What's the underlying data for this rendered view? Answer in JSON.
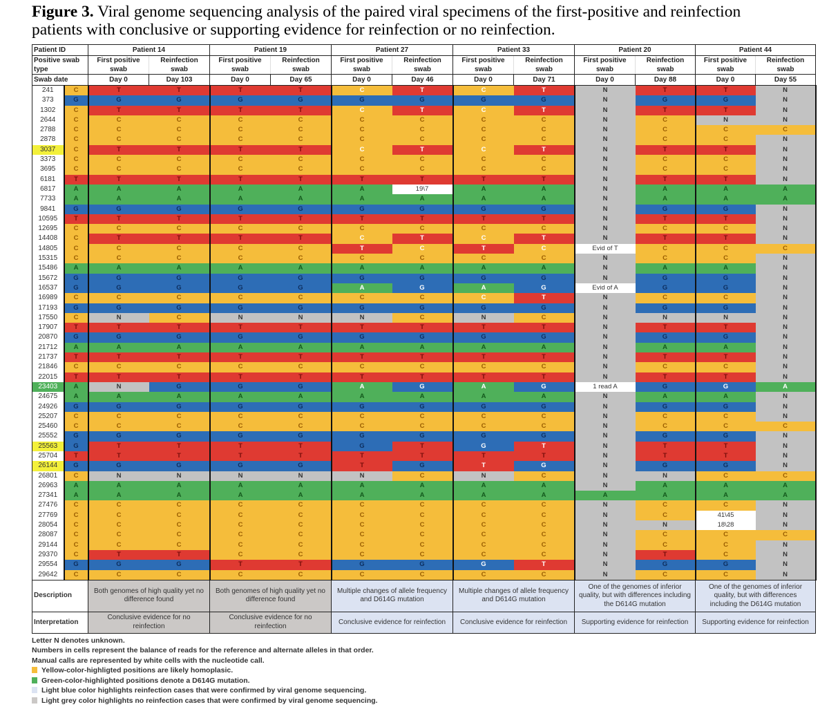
{
  "caption": {
    "label": "Figure 3.",
    "text": " Viral genome sequencing analysis of the paired viral specimens of the first-positive and reinfection",
    "line2": "patients with conclusive or supporting evidence for reinfection or no reinfection."
  },
  "header": {
    "patient_id_label": "Patient ID",
    "swab_type_label": "Positive swab type",
    "swab_date_label": "Swab date",
    "patients": [
      {
        "name": "Patient 14",
        "first": "First positive swab",
        "reinf": "Reinfection swab",
        "day_first": "Day 0",
        "day_reinf": "Day 103"
      },
      {
        "name": "Patient 19",
        "first": "First positive swab",
        "reinf": "Reinfection swab",
        "day_first": "Day 0",
        "day_reinf": "Day 65"
      },
      {
        "name": "Patient 27",
        "first": "First positive swab",
        "reinf": "Reinfection swab",
        "day_first": "Day 0",
        "day_reinf": "Day 46"
      },
      {
        "name": "Patient 33",
        "first": "First positive swab",
        "reinf": "Reinfection swab",
        "day_first": "Day 0",
        "day_reinf": "Day 71"
      },
      {
        "name": "Patient 20",
        "first": "First positive swab",
        "reinf": "Reinfection swab",
        "day_first": "Day 0",
        "day_reinf": "Day 88"
      },
      {
        "name": "Patient 44",
        "first": "First positive swab",
        "reinf": "Reinfection swab",
        "day_first": "Day 0",
        "day_reinf": "Day 55"
      }
    ]
  },
  "colors": {
    "C": "#f5bd3b",
    "T": "#df3a32",
    "G": "#2d6db6",
    "A": "#4fb05a",
    "N": "#c2c2c2",
    "manual": "#ffffff",
    "grey_case": "#cbc8c6",
    "blue_case": "#dce3f2"
  },
  "rows": [
    {
      "pos": "241",
      "cells": [
        "C",
        "T",
        "T",
        "T",
        "T",
        "C",
        "T",
        "C",
        "T",
        "N",
        "T",
        "T",
        "N"
      ],
      "light": [
        5,
        6,
        7,
        8
      ]
    },
    {
      "pos": "373",
      "cells": [
        "G",
        "G",
        "G",
        "G",
        "G",
        "G",
        "G",
        "G",
        "G",
        "N",
        "G",
        "G",
        "N"
      ]
    },
    {
      "pos": "1302",
      "cells": [
        "C",
        "T",
        "T",
        "T",
        "T",
        "C",
        "T",
        "C",
        "T",
        "N",
        "T",
        "T",
        "N"
      ],
      "light": [
        5,
        6,
        7,
        8
      ]
    },
    {
      "pos": "2644",
      "cells": [
        "C",
        "C",
        "C",
        "C",
        "C",
        "C",
        "C",
        "C",
        "C",
        "N",
        "C",
        "N",
        "N"
      ]
    },
    {
      "pos": "2788",
      "cells": [
        "C",
        "C",
        "C",
        "C",
        "C",
        "C",
        "C",
        "C",
        "C",
        "N",
        "C",
        "C",
        "C"
      ]
    },
    {
      "pos": "2878",
      "cells": [
        "C",
        "C",
        "C",
        "C",
        "C",
        "C",
        "C",
        "C",
        "C",
        "N",
        "C",
        "C",
        "N"
      ]
    },
    {
      "pos": "3037",
      "highlight": "yellow",
      "cells": [
        "C",
        "T",
        "T",
        "T",
        "T",
        "C",
        "T",
        "C",
        "T",
        "N",
        "T",
        "T",
        "N"
      ],
      "light": [
        5,
        6,
        7,
        8
      ]
    },
    {
      "pos": "3373",
      "cells": [
        "C",
        "C",
        "C",
        "C",
        "C",
        "C",
        "C",
        "C",
        "C",
        "N",
        "C",
        "C",
        "N"
      ]
    },
    {
      "pos": "3695",
      "cells": [
        "C",
        "C",
        "C",
        "C",
        "C",
        "C",
        "C",
        "C",
        "C",
        "N",
        "C",
        "C",
        "N"
      ]
    },
    {
      "pos": "6181",
      "cells": [
        "T",
        "T",
        "T",
        "T",
        "T",
        "T",
        "T",
        "T",
        "T",
        "N",
        "T",
        "T",
        "N"
      ]
    },
    {
      "pos": "6817",
      "cells": [
        "A",
        "A",
        "A",
        "A",
        "A",
        "A",
        "19\\7",
        "A",
        "A",
        "N",
        "A",
        "A",
        "A"
      ]
    },
    {
      "pos": "7733",
      "cells": [
        "A",
        "A",
        "A",
        "A",
        "A",
        "A",
        "A",
        "A",
        "A",
        "N",
        "A",
        "A",
        "A"
      ]
    },
    {
      "pos": "9841",
      "cells": [
        "G",
        "G",
        "G",
        "G",
        "G",
        "G",
        "G",
        "G",
        "G",
        "N",
        "G",
        "G",
        "N"
      ]
    },
    {
      "pos": "10595",
      "cells": [
        "T",
        "T",
        "T",
        "T",
        "T",
        "T",
        "T",
        "T",
        "T",
        "N",
        "T",
        "T",
        "N"
      ]
    },
    {
      "pos": "12695",
      "cells": [
        "C",
        "C",
        "C",
        "C",
        "C",
        "C",
        "C",
        "C",
        "C",
        "N",
        "C",
        "C",
        "N"
      ]
    },
    {
      "pos": "14408",
      "cells": [
        "C",
        "T",
        "T",
        "T",
        "T",
        "C",
        "T",
        "C",
        "T",
        "N",
        "T",
        "T",
        "N"
      ],
      "light": [
        5,
        6,
        7,
        8
      ]
    },
    {
      "pos": "14805",
      "cells": [
        "C",
        "C",
        "C",
        "C",
        "C",
        "T",
        "C",
        "T",
        "C",
        "Evid of T",
        "C",
        "C",
        "C"
      ],
      "light": [
        5,
        6,
        7,
        8
      ]
    },
    {
      "pos": "15315",
      "cells": [
        "C",
        "C",
        "C",
        "C",
        "C",
        "C",
        "C",
        "C",
        "C",
        "N",
        "C",
        "C",
        "N"
      ]
    },
    {
      "pos": "15486",
      "cells": [
        "A",
        "A",
        "A",
        "A",
        "A",
        "A",
        "A",
        "A",
        "A",
        "N",
        "A",
        "A",
        "N"
      ]
    },
    {
      "pos": "15672",
      "cells": [
        "G",
        "G",
        "G",
        "G",
        "G",
        "G",
        "G",
        "G",
        "G",
        "N",
        "G",
        "G",
        "N"
      ]
    },
    {
      "pos": "16537",
      "cells": [
        "G",
        "G",
        "G",
        "G",
        "G",
        "A",
        "G",
        "A",
        "G",
        "Evid of A",
        "G",
        "G",
        "N"
      ],
      "light": [
        5,
        6,
        7,
        8
      ]
    },
    {
      "pos": "16989",
      "cells": [
        "C",
        "C",
        "C",
        "C",
        "C",
        "C",
        "C",
        "C",
        "T",
        "N",
        "C",
        "C",
        "N"
      ],
      "light": [
        7,
        8
      ]
    },
    {
      "pos": "17193",
      "cells": [
        "G",
        "G",
        "G",
        "G",
        "G",
        "G",
        "G",
        "G",
        "G",
        "N",
        "G",
        "G",
        "N"
      ]
    },
    {
      "pos": "17550",
      "cells": [
        "C",
        "N",
        "C",
        "N",
        "N",
        "N",
        "C",
        "N",
        "C",
        "N",
        "N",
        "N",
        "N"
      ]
    },
    {
      "pos": "17907",
      "cells": [
        "T",
        "T",
        "T",
        "T",
        "T",
        "T",
        "T",
        "T",
        "T",
        "N",
        "T",
        "T",
        "N"
      ]
    },
    {
      "pos": "20870",
      "cells": [
        "G",
        "G",
        "G",
        "G",
        "G",
        "G",
        "G",
        "G",
        "G",
        "N",
        "G",
        "G",
        "N"
      ]
    },
    {
      "pos": "21712",
      "cells": [
        "A",
        "A",
        "A",
        "A",
        "A",
        "A",
        "A",
        "A",
        "A",
        "N",
        "A",
        "A",
        "N"
      ]
    },
    {
      "pos": "21737",
      "cells": [
        "T",
        "T",
        "T",
        "T",
        "T",
        "T",
        "T",
        "T",
        "T",
        "N",
        "T",
        "T",
        "N"
      ]
    },
    {
      "pos": "21846",
      "cells": [
        "C",
        "C",
        "C",
        "C",
        "C",
        "C",
        "C",
        "C",
        "C",
        "N",
        "C",
        "C",
        "N"
      ]
    },
    {
      "pos": "22015",
      "cells": [
        "T",
        "T",
        "T",
        "T",
        "T",
        "T",
        "T",
        "T",
        "T",
        "N",
        "T",
        "T",
        "N"
      ]
    },
    {
      "pos": "23403",
      "highlight": "green",
      "cells": [
        "A",
        "N",
        "G",
        "G",
        "G",
        "A",
        "G",
        "A",
        "G",
        "1 read A",
        "G",
        "G",
        "A"
      ],
      "light": [
        5,
        6,
        7,
        8,
        11,
        12
      ]
    },
    {
      "pos": "24675",
      "cells": [
        "A",
        "A",
        "A",
        "A",
        "A",
        "A",
        "A",
        "A",
        "A",
        "N",
        "A",
        "A",
        "N"
      ]
    },
    {
      "pos": "24926",
      "cells": [
        "G",
        "G",
        "G",
        "G",
        "G",
        "G",
        "G",
        "G",
        "G",
        "N",
        "G",
        "G",
        "N"
      ]
    },
    {
      "pos": "25207",
      "cells": [
        "C",
        "C",
        "C",
        "C",
        "C",
        "C",
        "C",
        "C",
        "C",
        "N",
        "C",
        "C",
        "N"
      ]
    },
    {
      "pos": "25460",
      "cells": [
        "C",
        "C",
        "C",
        "C",
        "C",
        "C",
        "C",
        "C",
        "C",
        "N",
        "C",
        "C",
        "C"
      ]
    },
    {
      "pos": "25552",
      "cells": [
        "G",
        "G",
        "G",
        "G",
        "G",
        "G",
        "G",
        "G",
        "G",
        "N",
        "G",
        "G",
        "N"
      ]
    },
    {
      "pos": "25563",
      "highlight": "yellow",
      "cells": [
        "G",
        "T",
        "T",
        "T",
        "T",
        "G",
        "T",
        "G",
        "T",
        "N",
        "T",
        "T",
        "N"
      ],
      "light": [
        7,
        8
      ]
    },
    {
      "pos": "25704",
      "cells": [
        "T",
        "T",
        "T",
        "T",
        "T",
        "T",
        "T",
        "T",
        "T",
        "N",
        "T",
        "T",
        "N"
      ]
    },
    {
      "pos": "26144",
      "highlight": "yellow",
      "cells": [
        "G",
        "G",
        "G",
        "G",
        "G",
        "T",
        "G",
        "T",
        "G",
        "N",
        "G",
        "G",
        "N"
      ],
      "light": [
        7,
        8
      ]
    },
    {
      "pos": "26801",
      "cells": [
        "C",
        "N",
        "N",
        "N",
        "N",
        "N",
        "C",
        "N",
        "C",
        "N",
        "N",
        "C",
        "C"
      ]
    },
    {
      "pos": "26963",
      "cells": [
        "A",
        "A",
        "A",
        "A",
        "A",
        "A",
        "A",
        "A",
        "A",
        "N",
        "A",
        "A",
        "A"
      ]
    },
    {
      "pos": "27341",
      "cells": [
        "A",
        "A",
        "A",
        "A",
        "A",
        "A",
        "A",
        "A",
        "A",
        "A",
        "A",
        "A",
        "A"
      ]
    },
    {
      "pos": "27476",
      "cells": [
        "C",
        "C",
        "C",
        "C",
        "C",
        "C",
        "C",
        "C",
        "C",
        "N",
        "C",
        "C",
        "N"
      ]
    },
    {
      "pos": "27769",
      "cells": [
        "C",
        "C",
        "C",
        "C",
        "C",
        "C",
        "C",
        "C",
        "C",
        "N",
        "C",
        "41\\45",
        "N"
      ]
    },
    {
      "pos": "28054",
      "cells": [
        "C",
        "C",
        "C",
        "C",
        "C",
        "C",
        "C",
        "C",
        "C",
        "N",
        "N",
        "18\\28",
        "N"
      ]
    },
    {
      "pos": "28087",
      "cells": [
        "C",
        "C",
        "C",
        "C",
        "C",
        "C",
        "C",
        "C",
        "C",
        "N",
        "C",
        "C",
        "C"
      ]
    },
    {
      "pos": "29144",
      "cells": [
        "C",
        "C",
        "C",
        "C",
        "C",
        "C",
        "C",
        "C",
        "C",
        "N",
        "C",
        "C",
        "N"
      ]
    },
    {
      "pos": "29370",
      "cells": [
        "C",
        "T",
        "T",
        "C",
        "C",
        "C",
        "C",
        "C",
        "C",
        "N",
        "T",
        "C",
        "N"
      ]
    },
    {
      "pos": "29554",
      "cells": [
        "G",
        "G",
        "G",
        "T",
        "T",
        "G",
        "G",
        "G",
        "T",
        "N",
        "G",
        "G",
        "N"
      ],
      "light": [
        7,
        8
      ]
    },
    {
      "pos": "29642",
      "cells": [
        "C",
        "C",
        "C",
        "C",
        "C",
        "C",
        "C",
        "C",
        "C",
        "N",
        "C",
        "C",
        "N"
      ]
    }
  ],
  "description": {
    "label": "Description",
    "values": [
      {
        "text": "Both genomes of high quality yet no difference found",
        "tone": "grey"
      },
      {
        "text": "Both genomes of high quality yet no difference found",
        "tone": "grey"
      },
      {
        "text": "Multiple changes of allele frequency and D614G mutation",
        "tone": "blue"
      },
      {
        "text": "Multiple changes of allele frequency and D614G mutation",
        "tone": "blue"
      },
      {
        "text": "One of the genomes of inferior quality, but with differences including the D614G mutation",
        "tone": "blue"
      },
      {
        "text": "One of the genomes of inferior quality, but with differences including the D614G mutation",
        "tone": "blue"
      }
    ]
  },
  "interpretation": {
    "label": "Interpretation",
    "values": [
      {
        "text": "Conclusive evidence for no reinfection",
        "tone": "grey"
      },
      {
        "text": "Conclusive evidence for no reinfection",
        "tone": "grey"
      },
      {
        "text": "Conclusive evidence for reinfection",
        "tone": "blue"
      },
      {
        "text": "Conclusive evidence for reinfection",
        "tone": "blue"
      },
      {
        "text": "Supporting evidence for reinfection",
        "tone": "blue"
      },
      {
        "text": "Supporting evidence for reinfection",
        "tone": "blue"
      }
    ]
  },
  "notes": {
    "n": "Letter N denotes unknown.",
    "numbers": "Numbers in cells represent the balance of reads for the reference and alternate alleles in that order.",
    "manual": "Manual calls are represented by white cells with the nucleotide call.",
    "yellow": "Yellow-color-highligted positions are likely homoplasic.",
    "green": "Green-color-highlighted positions denote a D614G mutation.",
    "blue": "Light blue color highlights reinfection cases that were confirmed by viral genome sequencing.",
    "grey": "Light grey color highlights no reinfection cases that were confirmed by viral genome sequencing."
  }
}
